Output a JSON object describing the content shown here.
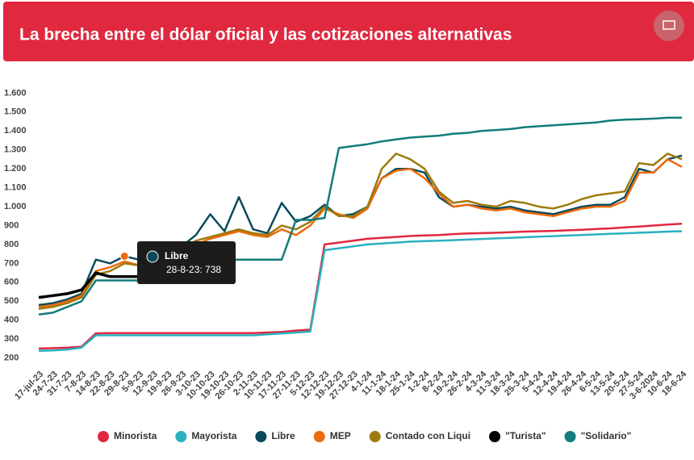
{
  "chart_data": {
    "type": "line",
    "title": "La brecha entre el dólar oficial y las cotizaciones alternativas",
    "categories": [
      "17-jul-23",
      "24-7-23",
      "31-7-23",
      "7-8-23",
      "14-8-23",
      "22-8-23",
      "29-8-23",
      "5-9-23",
      "12-9-23",
      "19-9-23",
      "26-9-23",
      "3-10-23",
      "10-10-23",
      "19-10-23",
      "26-10-23",
      "2-11-23",
      "10-11-23",
      "17-11-23",
      "27-11-23",
      "5-12-23",
      "12-12-23",
      "19-12-23",
      "27-12-23",
      "4-1-24",
      "11-1-24",
      "18-1-24",
      "25-1-24",
      "1-2-24",
      "8-2-24",
      "19-2-24",
      "26-2-24",
      "4-3-24",
      "11-3-24",
      "18-3-24",
      "25-3-24",
      "5-4-24",
      "12-4-24",
      "19-4-24",
      "26-4-24",
      "6-5-24",
      "13-5-24",
      "20-5-24",
      "27-5-24",
      "3-6-2024",
      "10-6-24",
      "18-6-24"
    ],
    "series": [
      {
        "name": "Minorista",
        "color": "#e0283f",
        "values": [
          250,
          252,
          255,
          260,
          330,
          332,
          332,
          332,
          332,
          332,
          332,
          332,
          332,
          332,
          332,
          332,
          335,
          338,
          345,
          350,
          800,
          810,
          820,
          830,
          835,
          840,
          845,
          848,
          850,
          855,
          858,
          860,
          862,
          865,
          868,
          870,
          872,
          875,
          878,
          882,
          885,
          890,
          895,
          900,
          905,
          910
        ]
      },
      {
        "name": "Mayorista",
        "color": "#2ab0c0",
        "values": [
          238,
          240,
          245,
          255,
          320,
          320,
          320,
          320,
          320,
          320,
          320,
          320,
          320,
          320,
          320,
          320,
          325,
          330,
          335,
          340,
          770,
          780,
          790,
          800,
          805,
          810,
          815,
          818,
          820,
          823,
          826,
          829,
          832,
          835,
          838,
          841,
          844,
          847,
          850,
          853,
          856,
          859,
          862,
          865,
          868,
          870
        ]
      },
      {
        "name": "Libre",
        "color": "#0b4a5c",
        "values": [
          480,
          490,
          510,
          540,
          720,
          700,
          738,
          720,
          730,
          800,
          790,
          850,
          960,
          870,
          1050,
          880,
          860,
          1020,
          920,
          950,
          1010,
          950,
          960,
          1000,
          1150,
          1200,
          1200,
          1180,
          1050,
          1000,
          1010,
          1000,
          990,
          1000,
          980,
          970,
          960,
          980,
          1000,
          1010,
          1010,
          1050,
          1200,
          1180,
          1250,
          1270
        ]
      },
      {
        "name": "MEP",
        "color": "#ec6a0c",
        "values": [
          470,
          480,
          500,
          530,
          660,
          680,
          710,
          690,
          700,
          720,
          740,
          800,
          830,
          850,
          870,
          850,
          840,
          880,
          850,
          900,
          990,
          960,
          940,
          990,
          1150,
          1190,
          1200,
          1150,
          1070,
          1000,
          1010,
          990,
          980,
          990,
          970,
          960,
          950,
          970,
          990,
          1000,
          1000,
          1030,
          1180,
          1180,
          1250,
          1210
        ]
      },
      {
        "name": "Contado con Liqui",
        "color": "#9e7a0d",
        "values": [
          460,
          470,
          490,
          520,
          640,
          660,
          700,
          690,
          700,
          730,
          770,
          820,
          840,
          860,
          880,
          860,
          850,
          900,
          880,
          920,
          1000,
          950,
          950,
          1000,
          1200,
          1280,
          1250,
          1200,
          1080,
          1020,
          1030,
          1010,
          1000,
          1030,
          1020,
          1000,
          990,
          1010,
          1040,
          1060,
          1070,
          1080,
          1230,
          1220,
          1280,
          1250
        ]
      },
      {
        "name": "\"Turista\"",
        "color": "#000000",
        "values": [
          520,
          530,
          540,
          560,
          650,
          630,
          630,
          630,
          null,
          null,
          null,
          null,
          null,
          null,
          null,
          null,
          null,
          null,
          null,
          null,
          null,
          null,
          null,
          null,
          null,
          null,
          null,
          null,
          null,
          null,
          null,
          null,
          null,
          null,
          null,
          null,
          null,
          null,
          null,
          null,
          null,
          null,
          null,
          null,
          null,
          null
        ]
      },
      {
        "name": "\"Solidario\"",
        "color": "#127c7a",
        "values": [
          430,
          440,
          470,
          500,
          610,
          610,
          610,
          610,
          610,
          700,
          700,
          700,
          720,
          720,
          720,
          720,
          720,
          720,
          930,
          930,
          940,
          1310,
          1320,
          1330,
          1345,
          1355,
          1365,
          1370,
          1375,
          1385,
          1390,
          1400,
          1405,
          1410,
          1420,
          1425,
          1430,
          1435,
          1440,
          1445,
          1455,
          1460,
          1462,
          1465,
          1470,
          1470
        ]
      }
    ],
    "ylim": [
      160,
      1640
    ],
    "yticks": [
      200,
      300,
      400,
      500,
      600,
      700,
      800,
      900,
      {
        "value": 1000,
        "label": "1.000"
      },
      {
        "value": 1100,
        "label": "1.100"
      },
      {
        "value": 1200,
        "label": "1.200"
      },
      {
        "value": 1300,
        "label": "1.300"
      },
      {
        "value": 1400,
        "label": "1.400"
      },
      {
        "value": 1500,
        "label": "1.500"
      },
      {
        "value": 1600,
        "label": "1.600"
      }
    ],
    "tooltip": {
      "name": "Libre",
      "text": "28-8-23: 738"
    }
  }
}
